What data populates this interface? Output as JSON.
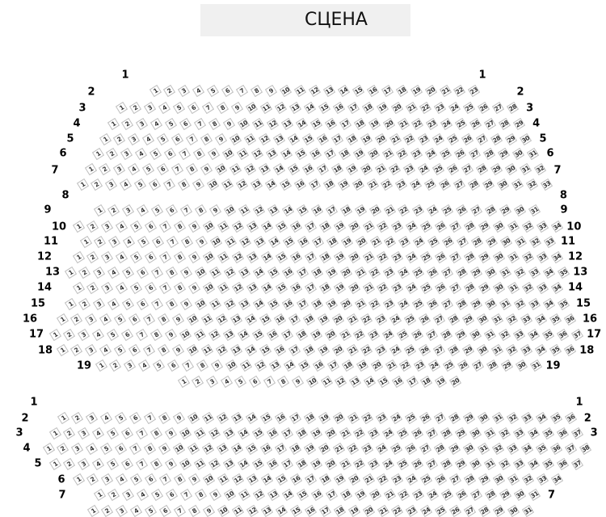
{
  "stage": {
    "title": "СЦЕНА",
    "background": "#f0f0f0"
  },
  "seat_colors": {
    "border": "#bdbdbd",
    "text": "#333333"
  },
  "sections": [
    {
      "rows": [
        {
          "label": "1",
          "seats": 0,
          "label_sides": [
            "left",
            "right"
          ]
        },
        {
          "label": "2",
          "seats": 23,
          "label_sides": [
            "left",
            "right"
          ]
        },
        {
          "label": "3",
          "seats": 28,
          "label_sides": [
            "left",
            "right"
          ]
        },
        {
          "label": "4",
          "seats": 29,
          "label_sides": [
            "left",
            "right"
          ]
        },
        {
          "label": "5",
          "seats": 30,
          "label_sides": [
            "left",
            "right"
          ]
        },
        {
          "label": "6",
          "seats": 31,
          "label_sides": [
            "left",
            "right"
          ]
        },
        {
          "label": "7",
          "seats": 32,
          "label_sides": [
            "left",
            "right"
          ]
        },
        {
          "label": "8",
          "seats": 33,
          "label_sides": [
            "left",
            "right"
          ]
        }
      ]
    },
    {
      "rows": [
        {
          "label": "9",
          "seats": 31,
          "label_sides": [
            "left",
            "right"
          ]
        },
        {
          "label": "10",
          "seats": 34,
          "label_sides": [
            "left",
            "right"
          ]
        },
        {
          "label": "11",
          "seats": 33,
          "label_sides": [
            "left",
            "right"
          ]
        },
        {
          "label": "12",
          "seats": 34,
          "label_sides": [
            "left",
            "right"
          ]
        },
        {
          "label": "13",
          "seats": 35,
          "label_sides": [
            "left",
            "right"
          ]
        },
        {
          "label": "14",
          "seats": 34,
          "label_sides": [
            "left",
            "right"
          ]
        },
        {
          "label": "15",
          "seats": 35,
          "label_sides": [
            "left",
            "right"
          ]
        },
        {
          "label": "16",
          "seats": 36,
          "label_sides": [
            "left",
            "right"
          ]
        },
        {
          "label": "17",
          "seats": 37,
          "label_sides": [
            "left",
            "right"
          ]
        },
        {
          "label": "18",
          "seats": 36,
          "label_sides": [
            "left",
            "right"
          ]
        },
        {
          "label": "19",
          "seats": 31,
          "label_sides": [
            "left",
            "right"
          ]
        },
        {
          "label": "",
          "seats": 20,
          "label_sides": []
        }
      ]
    },
    {
      "rows": [
        {
          "label": "1",
          "seats": 0,
          "label_sides": [
            "left",
            "right"
          ]
        },
        {
          "label": "2",
          "seats": 36,
          "label_sides": [
            "left",
            "right"
          ]
        },
        {
          "label": "3",
          "seats": 37,
          "label_sides": [
            "left",
            "right"
          ]
        },
        {
          "label": "4",
          "seats": 38,
          "label_sides": [
            "left"
          ]
        },
        {
          "label": "5",
          "seats": 37,
          "label_sides": [
            "left"
          ]
        },
        {
          "label": "6",
          "seats": 34,
          "label_sides": [
            "left"
          ]
        },
        {
          "label": "7",
          "seats": 31,
          "label_sides": [
            "left",
            "right"
          ]
        },
        {
          "label": "",
          "seats": 31,
          "label_sides": []
        }
      ]
    }
  ]
}
